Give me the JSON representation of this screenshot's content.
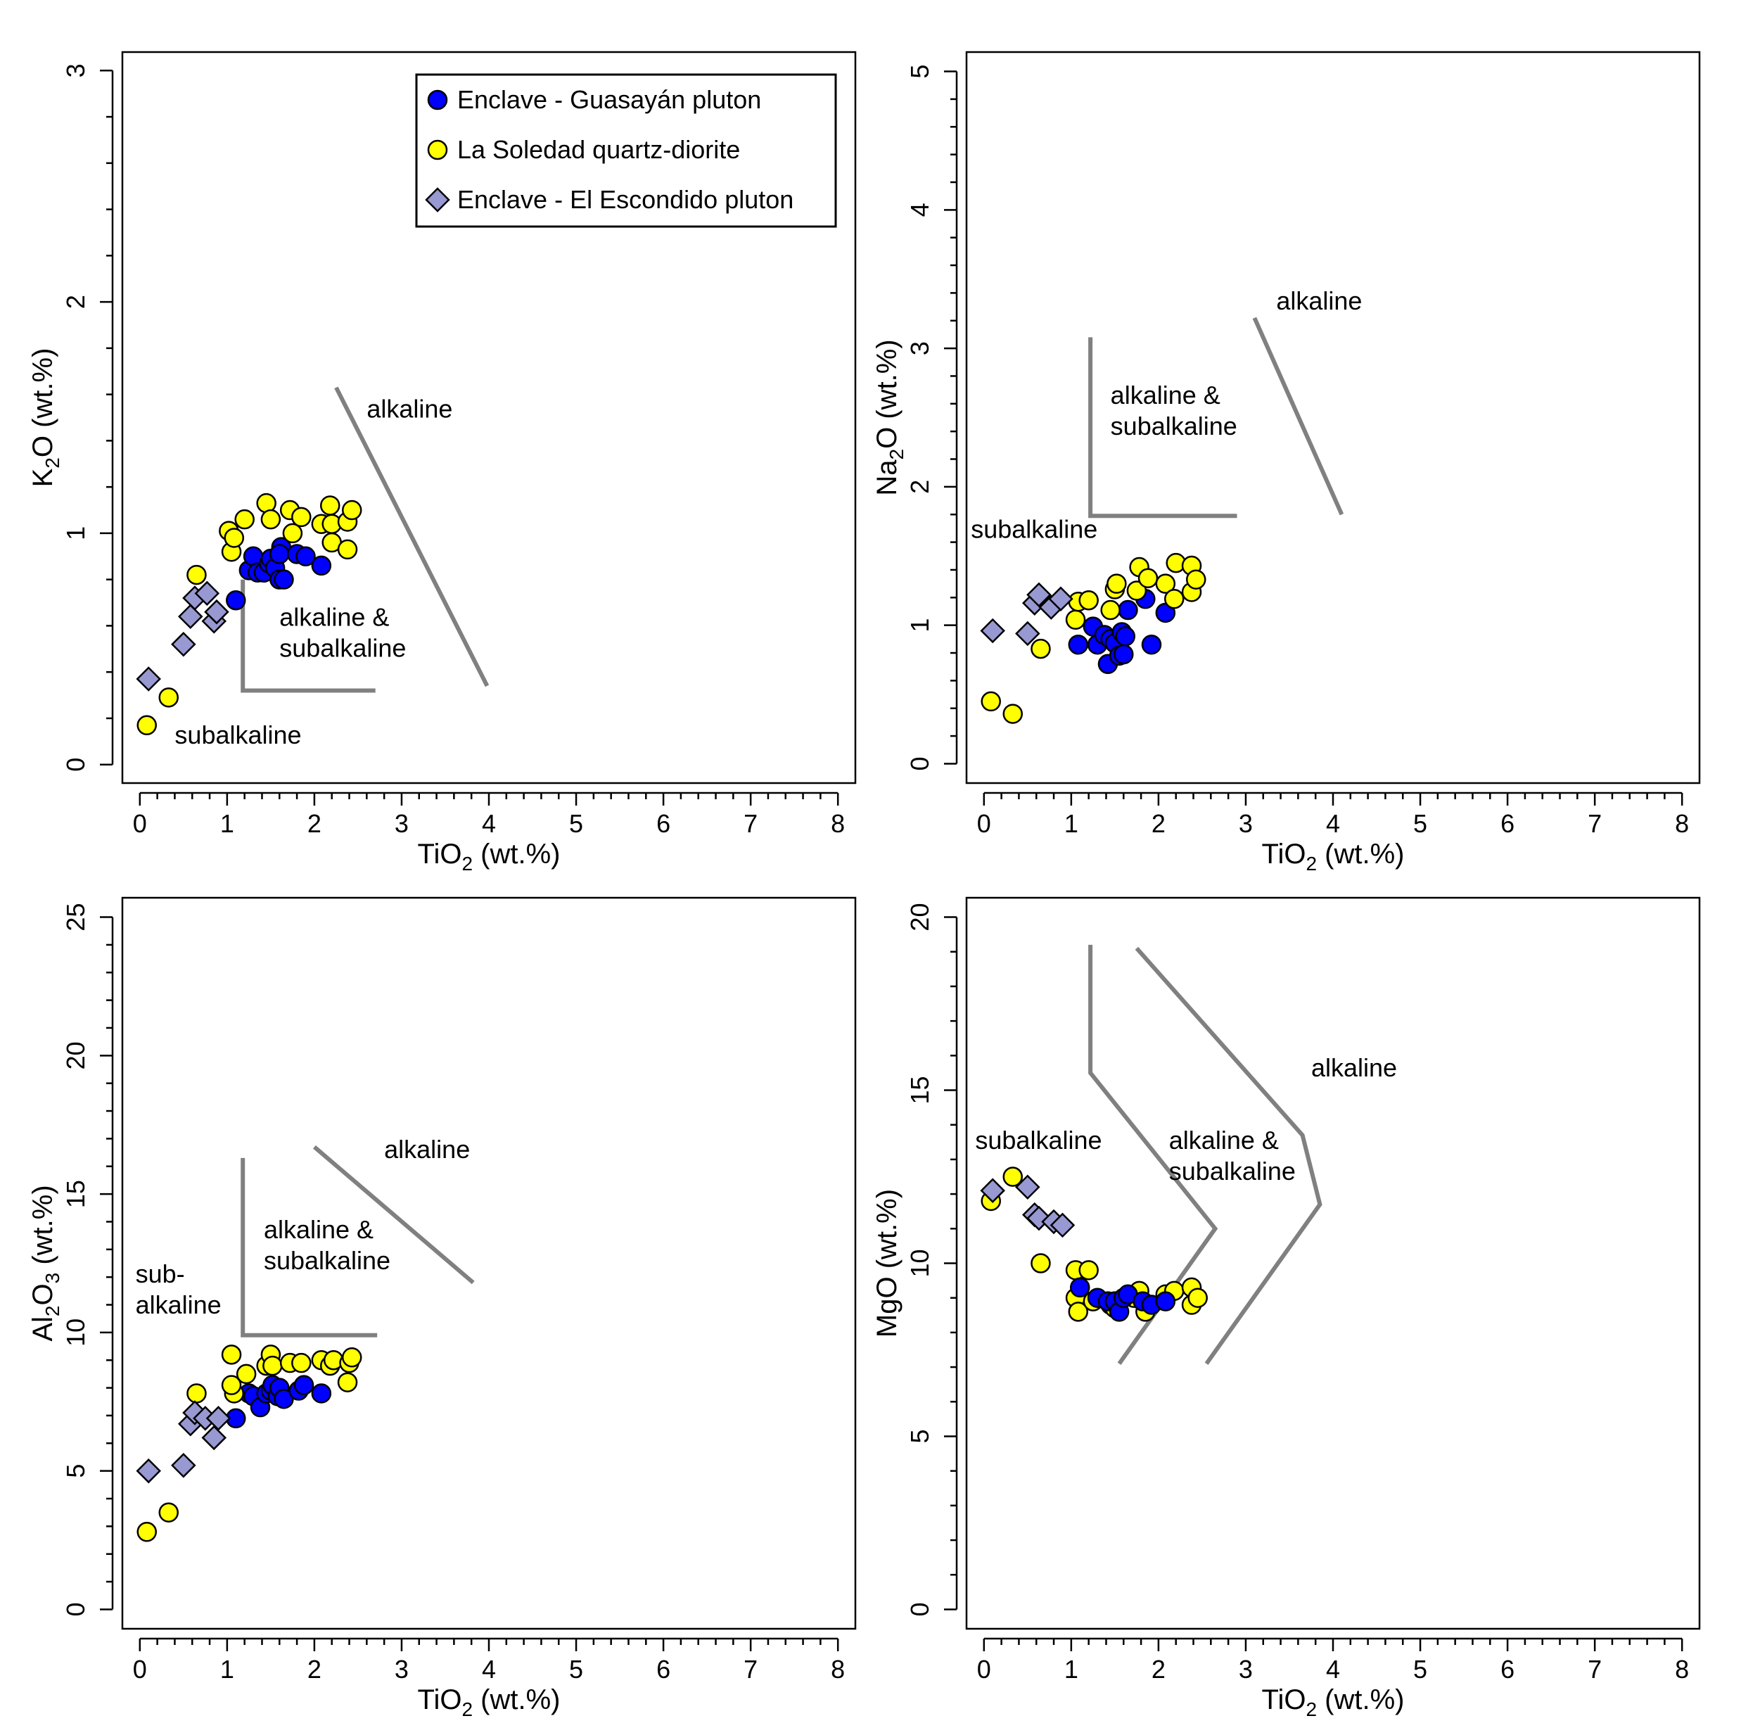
{
  "colors": {
    "guasayan": "#0000ff",
    "soledad": "#ffff00",
    "escondido": "#9898d2",
    "boundary": "#808080"
  },
  "legend": {
    "items": [
      {
        "label": "Enclave - Guasayán pluton",
        "marker": "circle",
        "color": "#0000ff"
      },
      {
        "label": "La Soledad quartz-diorite",
        "marker": "circle",
        "color": "#ffff00"
      },
      {
        "label": "Enclave - El Escondido pluton",
        "marker": "diamond",
        "color": "#9898d2"
      }
    ]
  },
  "chart_data": [
    {
      "type": "scatter",
      "id": "k2o",
      "xlabel": "TiO2 (wt.%)",
      "ylabel": "K2O (wt.%)",
      "x_title": {
        "main": "TiO",
        "sub": "2",
        "rest": " (wt.%)"
      },
      "y_title": {
        "pre": "K",
        "sub": "2",
        "rest": "O (wt.%)"
      },
      "xlim": [
        -0.2,
        8.2
      ],
      "ylim": [
        -0.08,
        3.08
      ],
      "xticks": [
        0,
        1,
        2,
        3,
        4,
        5,
        6,
        7,
        8
      ],
      "yticks": [
        0,
        1,
        2,
        3
      ],
      "yminor": 0.2,
      "legend": "top-right",
      "series": [
        {
          "name": "Enclave - Guasayán pluton",
          "marker": "circle",
          "color": "#0000ff",
          "points": [
            [
              1.1,
              0.71
            ],
            [
              1.25,
              0.84
            ],
            [
              1.3,
              0.9
            ],
            [
              1.35,
              0.83
            ],
            [
              1.42,
              0.83
            ],
            [
              1.48,
              0.87
            ],
            [
              1.5,
              0.89
            ],
            [
              1.55,
              0.85
            ],
            [
              1.6,
              0.8
            ],
            [
              1.62,
              0.94
            ],
            [
              1.65,
              0.8
            ],
            [
              1.6,
              0.91
            ],
            [
              1.8,
              0.91
            ],
            [
              1.9,
              0.9
            ],
            [
              2.08,
              0.86
            ]
          ]
        },
        {
          "name": "La Soledad quartz-diorite",
          "marker": "circle",
          "color": "#ffff00",
          "points": [
            [
              0.08,
              0.17
            ],
            [
              0.33,
              0.29
            ],
            [
              0.65,
              0.82
            ],
            [
              1.02,
              1.01
            ],
            [
              1.05,
              0.92
            ],
            [
              1.08,
              0.98
            ],
            [
              1.2,
              1.06
            ],
            [
              1.45,
              1.13
            ],
            [
              1.5,
              1.06
            ],
            [
              1.72,
              1.1
            ],
            [
              1.75,
              1.0
            ],
            [
              1.85,
              1.07
            ],
            [
              2.08,
              1.04
            ],
            [
              2.18,
              1.12
            ],
            [
              2.2,
              1.04
            ],
            [
              2.2,
              0.96
            ],
            [
              2.38,
              1.05
            ],
            [
              2.38,
              0.93
            ],
            [
              2.43,
              1.1
            ]
          ]
        },
        {
          "name": "Enclave - El Escondido pluton",
          "marker": "diamond",
          "color": "#9898d2",
          "points": [
            [
              0.1,
              0.37
            ],
            [
              0.5,
              0.52
            ],
            [
              0.58,
              0.64
            ],
            [
              0.63,
              0.72
            ],
            [
              0.77,
              0.74
            ],
            [
              0.85,
              0.62
            ],
            [
              0.88,
              0.66
            ]
          ]
        }
      ],
      "boundaries": [
        [
          [
            1.18,
            0.8
          ],
          [
            1.18,
            0.32
          ],
          [
            1.22,
            0.32
          ],
          [
            2.7,
            0.32
          ]
        ],
        [
          [
            2.25,
            1.63
          ],
          [
            3.98,
            0.34
          ]
        ]
      ],
      "annotations": [
        {
          "lines": [
            "alkaline"
          ],
          "x": 2.6,
          "y": 1.5
        },
        {
          "lines": [
            "alkaline &",
            "subalkaline"
          ],
          "x": 1.6,
          "y": 0.6
        },
        {
          "lines": [
            "subalkaline"
          ],
          "x": 0.4,
          "y": 0.09
        }
      ]
    },
    {
      "type": "scatter",
      "id": "na2o",
      "xlabel": "TiO2 (wt.%)",
      "ylabel": "Na2O (wt.%)",
      "x_title": {
        "main": "TiO",
        "sub": "2",
        "rest": " (wt.%)"
      },
      "y_title": {
        "pre": "Na",
        "sub": "2",
        "rest": "O (wt.%)"
      },
      "xlim": [
        -0.2,
        8.2
      ],
      "ylim": [
        -0.14,
        5.14
      ],
      "xticks": [
        0,
        1,
        2,
        3,
        4,
        5,
        6,
        7,
        8
      ],
      "yticks": [
        0,
        1,
        2,
        3,
        4,
        5
      ],
      "yminor": 0.2,
      "series": [
        {
          "name": "Enclave - Guasayán pluton",
          "marker": "circle",
          "color": "#0000ff",
          "points": [
            [
              1.08,
              0.86
            ],
            [
              1.25,
              0.99
            ],
            [
              1.3,
              0.86
            ],
            [
              1.38,
              0.93
            ],
            [
              1.42,
              0.72
            ],
            [
              1.45,
              0.9
            ],
            [
              1.5,
              0.87
            ],
            [
              1.55,
              0.78
            ],
            [
              1.58,
              0.95
            ],
            [
              1.6,
              0.79
            ],
            [
              1.62,
              0.92
            ],
            [
              1.65,
              1.11
            ],
            [
              1.85,
              1.19
            ],
            [
              1.92,
              0.86
            ],
            [
              2.08,
              1.09
            ]
          ]
        },
        {
          "name": "La Soledad quartz-diorite",
          "marker": "circle",
          "color": "#ffff00",
          "points": [
            [
              0.08,
              0.45
            ],
            [
              0.33,
              0.36
            ],
            [
              0.65,
              0.83
            ],
            [
              1.05,
              1.04
            ],
            [
              1.08,
              1.17
            ],
            [
              1.2,
              1.18
            ],
            [
              1.45,
              1.11
            ],
            [
              1.5,
              1.26
            ],
            [
              1.52,
              1.3
            ],
            [
              1.75,
              1.25
            ],
            [
              1.78,
              1.42
            ],
            [
              1.88,
              1.34
            ],
            [
              2.08,
              1.3
            ],
            [
              2.18,
              1.19
            ],
            [
              2.2,
              1.45
            ],
            [
              2.38,
              1.43
            ],
            [
              2.38,
              1.24
            ],
            [
              2.43,
              1.33
            ]
          ]
        },
        {
          "name": "Enclave - El Escondido pluton",
          "marker": "diamond",
          "color": "#9898d2",
          "points": [
            [
              0.1,
              0.96
            ],
            [
              0.5,
              0.94
            ],
            [
              0.58,
              1.16
            ],
            [
              0.63,
              1.22
            ],
            [
              0.77,
              1.13
            ],
            [
              0.88,
              1.19
            ]
          ]
        }
      ],
      "boundaries": [
        [
          [
            1.22,
            3.08
          ],
          [
            1.22,
            1.79
          ],
          [
            2.9,
            1.79
          ]
        ],
        [
          [
            3.1,
            3.22
          ],
          [
            4.1,
            1.8
          ]
        ]
      ],
      "annotations": [
        {
          "lines": [
            "alkaline"
          ],
          "x": 3.35,
          "y": 3.28
        },
        {
          "lines": [
            "alkaline &",
            "subalkaline"
          ],
          "x": 1.45,
          "y": 2.6
        },
        {
          "lines": [
            "subalkaline"
          ],
          "x": -0.15,
          "y": 1.63
        }
      ]
    },
    {
      "type": "scatter",
      "id": "al2o3",
      "xlabel": "TiO2 (wt.%)",
      "ylabel": "Al2O3 (wt.%)",
      "x_title": {
        "main": "TiO",
        "sub": "2",
        "rest": " (wt.%)"
      },
      "y_title": {
        "pre": "Al",
        "sub": "2",
        "mid": "O",
        "sub2": "3",
        "rest": " (wt.%)"
      },
      "xlim": [
        -0.2,
        8.2
      ],
      "ylim": [
        -0.7,
        25.7
      ],
      "xticks": [
        0,
        1,
        2,
        3,
        4,
        5,
        6,
        7,
        8
      ],
      "yticks": [
        0,
        5,
        10,
        15,
        20,
        25
      ],
      "yminor": 1,
      "series": [
        {
          "name": "Enclave - Guasayán pluton",
          "marker": "circle",
          "color": "#0000ff",
          "points": [
            [
              1.1,
              6.9
            ],
            [
              1.25,
              7.8
            ],
            [
              1.3,
              7.7
            ],
            [
              1.38,
              7.3
            ],
            [
              1.45,
              7.8
            ],
            [
              1.5,
              7.9
            ],
            [
              1.52,
              8.1
            ],
            [
              1.58,
              7.7
            ],
            [
              1.6,
              8.0
            ],
            [
              1.65,
              7.6
            ],
            [
              1.82,
              7.9
            ],
            [
              1.88,
              8.1
            ],
            [
              2.08,
              7.8
            ]
          ]
        },
        {
          "name": "La Soledad quartz-diorite",
          "marker": "circle",
          "color": "#ffff00",
          "points": [
            [
              0.08,
              2.8
            ],
            [
              0.33,
              3.5
            ],
            [
              0.65,
              7.8
            ],
            [
              1.05,
              9.2
            ],
            [
              1.08,
              7.8
            ],
            [
              1.05,
              8.1
            ],
            [
              1.22,
              8.5
            ],
            [
              1.45,
              8.8
            ],
            [
              1.5,
              9.2
            ],
            [
              1.52,
              8.8
            ],
            [
              1.72,
              8.9
            ],
            [
              1.85,
              8.9
            ],
            [
              2.08,
              9.0
            ],
            [
              2.18,
              8.8
            ],
            [
              2.22,
              9.0
            ],
            [
              2.38,
              8.2
            ],
            [
              2.4,
              8.9
            ],
            [
              2.43,
              9.1
            ]
          ]
        },
        {
          "name": "Enclave - El Escondido pluton",
          "marker": "diamond",
          "color": "#9898d2",
          "points": [
            [
              0.1,
              5.0
            ],
            [
              0.5,
              5.2
            ],
            [
              0.58,
              6.7
            ],
            [
              0.63,
              7.1
            ],
            [
              0.75,
              6.9
            ],
            [
              0.85,
              6.2
            ],
            [
              0.9,
              6.9
            ]
          ]
        }
      ],
      "boundaries": [
        [
          [
            1.18,
            16.3
          ],
          [
            1.18,
            9.9
          ],
          [
            2.72,
            9.9
          ]
        ],
        [
          [
            2.0,
            16.7
          ],
          [
            3.82,
            11.8
          ]
        ]
      ],
      "annotations": [
        {
          "lines": [
            "alkaline"
          ],
          "x": 2.8,
          "y": 16.3
        },
        {
          "lines": [
            "alkaline &",
            "subalkaline"
          ],
          "x": 1.42,
          "y": 13.4
        },
        {
          "lines": [
            "sub-",
            "alkaline"
          ],
          "x": -0.05,
          "y": 11.8
        }
      ]
    },
    {
      "type": "scatter",
      "id": "mgo",
      "xlabel": "TiO2 (wt.%)",
      "ylabel": "MgO (wt.%)",
      "x_title": {
        "main": "TiO",
        "sub": "2",
        "rest": " (wt.%)"
      },
      "y_title": {
        "pre": "MgO (wt.%)"
      },
      "xlim": [
        -0.2,
        8.2
      ],
      "ylim": [
        -0.56,
        20.56
      ],
      "xticks": [
        0,
        1,
        2,
        3,
        4,
        5,
        6,
        7,
        8
      ],
      "yticks": [
        0,
        5,
        10,
        15,
        20
      ],
      "yminor": 1,
      "series": [
        {
          "name": "La Soledad quartz-diorite",
          "marker": "circle",
          "color": "#ffff00",
          "points": [
            [
              0.08,
              11.8
            ],
            [
              0.33,
              12.5
            ],
            [
              0.65,
              10.0
            ],
            [
              1.05,
              9.8
            ],
            [
              1.2,
              9.8
            ],
            [
              1.05,
              9.0
            ],
            [
              1.08,
              8.6
            ],
            [
              1.25,
              8.9
            ],
            [
              1.45,
              8.8
            ],
            [
              1.5,
              8.7
            ],
            [
              1.72,
              9.0
            ],
            [
              1.78,
              9.2
            ],
            [
              1.85,
              8.6
            ],
            [
              2.08,
              9.1
            ],
            [
              2.18,
              9.2
            ],
            [
              2.38,
              9.3
            ],
            [
              2.38,
              8.8
            ],
            [
              2.45,
              9.0
            ]
          ]
        },
        {
          "name": "Enclave - Guasayán pluton",
          "marker": "circle",
          "color": "#0000ff",
          "points": [
            [
              1.1,
              9.3
            ],
            [
              1.3,
              9.0
            ],
            [
              1.42,
              8.9
            ],
            [
              1.5,
              8.9
            ],
            [
              1.55,
              8.6
            ],
            [
              1.6,
              9.0
            ],
            [
              1.65,
              9.1
            ],
            [
              1.82,
              8.9
            ],
            [
              1.92,
              8.8
            ],
            [
              2.08,
              8.9
            ]
          ]
        },
        {
          "name": "Enclave - El Escondido pluton",
          "marker": "diamond",
          "color": "#9898d2",
          "points": [
            [
              0.1,
              12.1
            ],
            [
              0.5,
              12.2
            ],
            [
              0.58,
              11.4
            ],
            [
              0.63,
              11.3
            ],
            [
              0.8,
              11.2
            ],
            [
              0.9,
              11.1
            ]
          ]
        }
      ],
      "boundaries": [
        [
          [
            1.22,
            19.2
          ],
          [
            1.22,
            15.5
          ],
          [
            2.65,
            11.0
          ],
          [
            1.55,
            7.1
          ]
        ],
        [
          [
            1.75,
            19.1
          ],
          [
            3.65,
            13.7
          ],
          [
            3.85,
            11.7
          ],
          [
            2.55,
            7.1
          ]
        ]
      ],
      "annotations": [
        {
          "lines": [
            "alkaline"
          ],
          "x": 3.75,
          "y": 15.4
        },
        {
          "lines": [
            "alkaline &",
            "subalkaline"
          ],
          "x": 2.12,
          "y": 13.3
        },
        {
          "lines": [
            "subalkaline"
          ],
          "x": -0.1,
          "y": 13.3
        }
      ]
    }
  ]
}
